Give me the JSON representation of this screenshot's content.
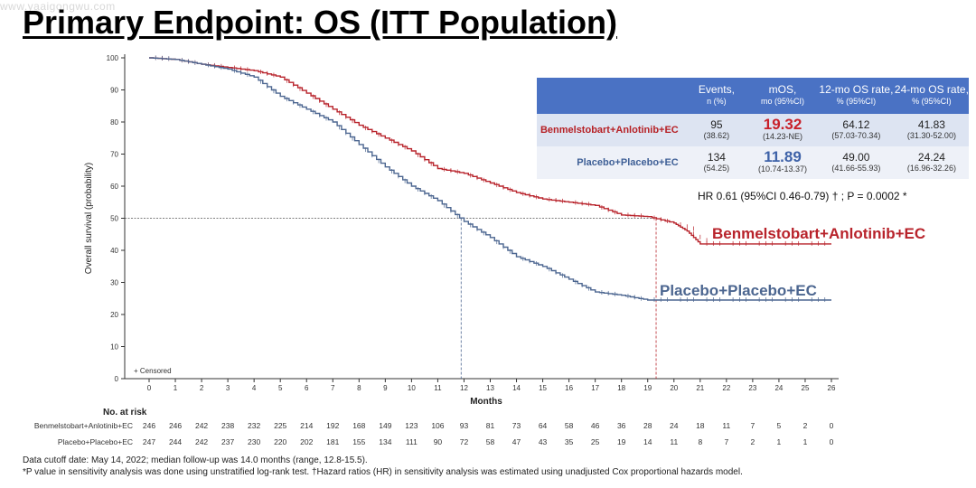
{
  "watermark": "www.yaaigongwu.com",
  "title": "Primary Endpoint: OS (ITT Population)",
  "table": {
    "headers": [
      {
        "main": "",
        "sub": ""
      },
      {
        "main": "Events,",
        "sub": "n (%)"
      },
      {
        "main": "mOS,",
        "sub": "mo (95%CI)"
      },
      {
        "main": "12-mo OS rate,",
        "sub": "% (95%CI)"
      },
      {
        "main": "24-mo OS rate,",
        "sub": "% (95%CI)"
      }
    ],
    "rows": [
      {
        "arm": "Benmelstobart+Anlotinib+EC",
        "events": "95",
        "events_pct": "(38.62)",
        "mos": "19.32",
        "mos_ci": "(14.23-NE)",
        "os12": "64.12",
        "os12_ci": "(57.03-70.34)",
        "os24": "41.83",
        "os24_ci": "(31.30-52.00)"
      },
      {
        "arm": "Placebo+Placebo+EC",
        "events": "134",
        "events_pct": "(54.25)",
        "mos": "11.89",
        "mos_ci": "(10.74-13.37)",
        "os12": "49.00",
        "os12_ci": "(41.66-55.93)",
        "os24": "24.24",
        "os24_ci": "(16.96-32.26)"
      }
    ]
  },
  "hr_note": "HR 0.61 (95%CI 0.46-0.79) † ; P = 0.0002 *",
  "footnotes": [
    "Data cutoff date: May 14, 2022; median follow-up was 14.0 months (range, 12.8-15.5).",
    "*P value in sensitivity analysis was done using unstratified log-rank test.  †Hazard ratios (HR) in sensitivity analysis was estimated using unadjusted Cox proportional hazards model."
  ],
  "colors": {
    "arm_a": "#b8232b",
    "arm_b": "#4c6690",
    "header": "#4a72c4"
  },
  "chart_data": {
    "type": "line",
    "ylabel": "Overall survival (probability)",
    "xlabel": "Months",
    "xlim": [
      0,
      26
    ],
    "ylim": [
      0,
      100
    ],
    "x_ticks": [
      0,
      1,
      2,
      3,
      4,
      5,
      6,
      7,
      8,
      9,
      10,
      11,
      12,
      13,
      14,
      15,
      16,
      17,
      18,
      19,
      20,
      21,
      22,
      23,
      24,
      25,
      26
    ],
    "y_ticks": [
      0,
      10,
      20,
      30,
      40,
      50,
      60,
      70,
      80,
      90,
      100
    ],
    "censored_legend": "+ Censored",
    "reference_line_y": 50,
    "median_markers": [
      11.89,
      19.32
    ],
    "series": [
      {
        "name": "Benmelstobart+Anlotinib+EC",
        "color": "#b8232b",
        "x": [
          0,
          1,
          2,
          3,
          4,
          5,
          6,
          7,
          8,
          9,
          10,
          11,
          12,
          13,
          14,
          15,
          16,
          17,
          18,
          19,
          20,
          20.5,
          21,
          22,
          23,
          24,
          25,
          26
        ],
        "y": [
          100,
          99.5,
          98,
          97,
          96,
          94,
          89,
          84,
          79,
          75,
          71,
          65.5,
          64,
          61,
          58,
          56,
          55,
          54,
          51,
          50.5,
          48.5,
          46,
          42,
          42,
          42,
          42,
          42,
          42
        ]
      },
      {
        "name": "Placebo+Placebo+EC",
        "color": "#4c6690",
        "x": [
          0,
          1,
          2,
          3,
          4,
          5,
          6,
          7,
          8,
          9,
          10,
          11,
          12,
          13,
          14,
          15,
          16,
          17,
          18,
          19,
          20,
          21,
          22,
          23,
          24,
          25,
          26
        ],
        "y": [
          100,
          99.5,
          98,
          96.5,
          94,
          88,
          84,
          80,
          73,
          66,
          60,
          55.5,
          49,
          44,
          38,
          35,
          31,
          27,
          26,
          24.5,
          24.5,
          24.5,
          24.5,
          24.5,
          24.5,
          24.5,
          24.5
        ]
      }
    ],
    "at_risk": {
      "title": "No. at risk",
      "x": [
        0,
        1,
        2,
        3,
        4,
        5,
        6,
        7,
        8,
        9,
        10,
        11,
        12,
        13,
        14,
        15,
        16,
        17,
        18,
        19,
        20,
        21,
        22,
        23,
        24,
        25,
        26
      ],
      "rows": [
        {
          "label": "Benmelstobart+Anlotinib+EC",
          "values": [
            246,
            246,
            242,
            238,
            232,
            225,
            214,
            192,
            168,
            149,
            123,
            106,
            93,
            81,
            73,
            64,
            58,
            46,
            36,
            28,
            24,
            18,
            11,
            7,
            5,
            2,
            0
          ]
        },
        {
          "label": "Placebo+Placebo+EC",
          "values": [
            247,
            244,
            242,
            237,
            230,
            220,
            202,
            181,
            155,
            134,
            111,
            90,
            72,
            58,
            47,
            43,
            35,
            25,
            19,
            14,
            11,
            8,
            7,
            2,
            1,
            1,
            0
          ]
        }
      ]
    }
  }
}
